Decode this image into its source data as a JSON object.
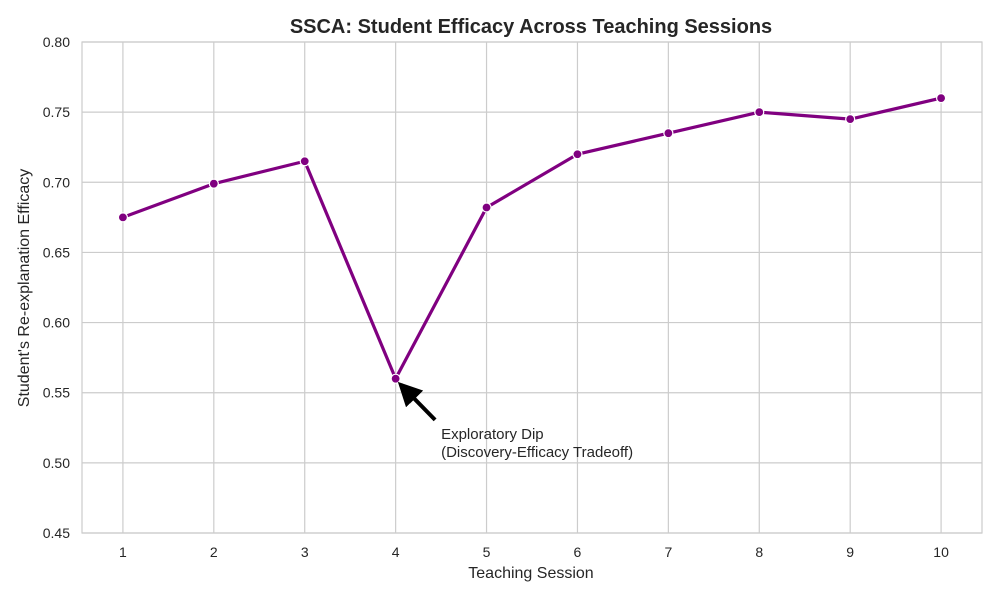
{
  "chart_data": {
    "type": "line",
    "title": "SSCA: Student Efficacy Across Teaching Sessions",
    "xlabel": "Teaching Session",
    "ylabel": "Student's Re-explanation Efficacy",
    "x": [
      1,
      2,
      3,
      4,
      5,
      6,
      7,
      8,
      9,
      10
    ],
    "series": [
      {
        "values": [
          0.675,
          0.699,
          0.715,
          0.56,
          0.682,
          0.72,
          0.735,
          0.75,
          0.745,
          0.76
        ],
        "color": "#800080"
      }
    ],
    "xlim": [
      0.55,
      10.45
    ],
    "ylim": [
      0.45,
      0.8
    ],
    "x_ticks": [
      "1",
      "2",
      "3",
      "4",
      "5",
      "6",
      "7",
      "8",
      "9",
      "10"
    ],
    "y_ticks": [
      "0.45",
      "0.50",
      "0.55",
      "0.60",
      "0.65",
      "0.70",
      "0.75",
      "0.80"
    ],
    "grid": true,
    "annotations": [
      {
        "text_line1": "Exploratory Dip",
        "text_line2": "(Discovery-Efficacy Tradeoff)",
        "point": [
          4,
          0.56
        ],
        "text_at": [
          4.5,
          0.505
        ]
      }
    ]
  }
}
